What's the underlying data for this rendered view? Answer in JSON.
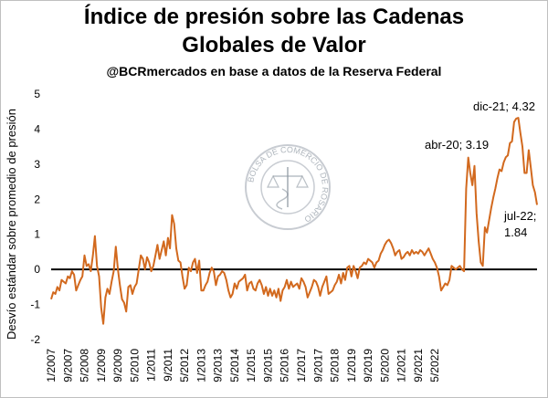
{
  "chart_data": {
    "type": "line",
    "title_line1": "Índice de presión sobre las Cadenas",
    "title_line2": "Globales de Valor",
    "subtitle": "@BCRmercados en base a datos de la Reserva Federal",
    "ylabel": "Desvío estándar sobre promedio de presión",
    "xlabel": "",
    "ylim": [
      -2,
      5
    ],
    "yticks": [
      -2,
      -1,
      0,
      1,
      2,
      3,
      4,
      5
    ],
    "xticks": [
      "1/2007",
      "5/2008",
      "9/2009",
      "1/2011",
      "5/2012",
      "9/2013",
      "1/2015",
      "5/2016",
      "9/2017",
      "1/2019",
      "5/2020",
      "9/2021"
    ],
    "xticks_rot": [
      "9/2007",
      "1/2009",
      "5/2010",
      "9/2011",
      "1/2013",
      "5/2014",
      "9/2015",
      "1/2017",
      "5/2018",
      "9/2019",
      "1/2021",
      "5/2022"
    ],
    "grid": false,
    "line_color": "#D2691E",
    "zero_line_color": "#000000",
    "series": [
      {
        "name": "",
        "start": "1/2007",
        "values": [
          -0.85,
          -0.65,
          -0.7,
          -0.5,
          -0.6,
          -0.3,
          -0.35,
          -0.4,
          -0.2,
          -0.25,
          -0.05,
          -0.15,
          -0.6,
          -0.45,
          -0.3,
          -0.2,
          0.4,
          0.1,
          0.15,
          -0.05,
          0.4,
          0.95,
          0.1,
          -0.2,
          -1.1,
          -1.55,
          -0.8,
          -0.55,
          -0.7,
          -0.35,
          -0.05,
          0.65,
          0.0,
          -0.45,
          -0.85,
          -0.95,
          -1.2,
          -0.5,
          -0.45,
          -0.7,
          -0.5,
          -0.4,
          0.0,
          0.4,
          0.3,
          0.0,
          0.35,
          0.2,
          -0.05,
          0.1,
          0.4,
          0.7,
          0.3,
          0.55,
          0.8,
          0.4,
          0.9,
          0.6,
          1.55,
          1.3,
          0.6,
          0.25,
          0.2,
          -0.2,
          -0.55,
          -0.45,
          0.05,
          -0.05,
          0.2,
          0.3,
          -0.1,
          0.25,
          -0.6,
          -0.6,
          -0.45,
          -0.35,
          -0.1,
          0.05,
          -0.05,
          -0.45,
          -0.2,
          -0.15,
          -0.05,
          -0.1,
          -0.3,
          -0.6,
          -0.8,
          -0.7,
          -0.4,
          -0.55,
          -0.35,
          -0.3,
          -0.25,
          -0.15,
          -0.6,
          -0.4,
          -0.35,
          -0.55,
          -0.6,
          -0.4,
          -0.3,
          -0.45,
          -0.7,
          -0.5,
          -0.75,
          -0.55,
          -0.75,
          -0.6,
          -0.8,
          -0.55,
          -0.9,
          -0.6,
          -0.5,
          -0.3,
          -0.55,
          -0.35,
          -0.5,
          -0.45,
          -0.4,
          -0.55,
          -0.25,
          -0.35,
          -0.5,
          -0.8,
          -0.65,
          -0.5,
          -0.3,
          -0.35,
          -0.5,
          -0.75,
          -0.5,
          -0.35,
          -0.2,
          -0.7,
          -0.65,
          -0.6,
          -0.45,
          -0.35,
          -0.15,
          -0.4,
          -0.1,
          -0.3,
          0.05,
          0.1,
          -0.2,
          0.1,
          -0.05,
          -0.25,
          0.05,
          0.1,
          0.2,
          0.15,
          0.3,
          0.25,
          0.2,
          0.05,
          0.2,
          0.25,
          0.45,
          0.55,
          0.7,
          0.8,
          0.85,
          0.75,
          0.6,
          0.4,
          0.5,
          0.55,
          0.3,
          0.35,
          0.45,
          0.5,
          0.4,
          0.55,
          0.45,
          0.5,
          0.45,
          0.55,
          0.5,
          0.4,
          0.5,
          0.6,
          0.45,
          0.3,
          0.2,
          0.05,
          -0.2,
          -0.6,
          -0.5,
          -0.4,
          -0.45,
          -0.3,
          0.1,
          0.05,
          0.0,
          0.05,
          0.1,
          0.0,
          -0.05,
          2.3,
          3.19,
          2.75,
          2.4,
          2.95,
          1.6,
          0.8,
          0.2,
          0.1,
          1.2,
          1.05,
          1.4,
          1.75,
          2.05,
          2.3,
          2.6,
          2.85,
          2.8,
          3.05,
          3.2,
          3.25,
          3.6,
          3.65,
          4.2,
          4.3,
          4.32,
          3.9,
          3.5,
          2.75,
          2.75,
          3.4,
          2.9,
          2.4,
          2.2,
          1.84
        ]
      }
    ],
    "annotations": [
      {
        "lines": [
          "dic-21; 4.32"
        ]
      },
      {
        "lines": [
          "abr-20; 3.19"
        ]
      },
      {
        "lines": [
          "jul-22;",
          "1.84"
        ]
      }
    ]
  },
  "watermark": {
    "text": "BOLSA DE COMERCIO DE ROSARIO"
  }
}
